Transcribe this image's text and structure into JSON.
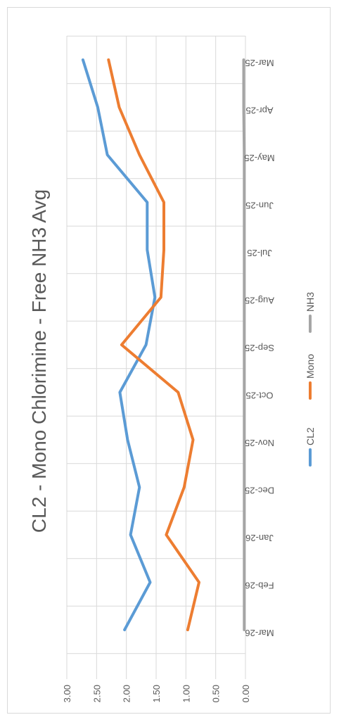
{
  "chart_data": {
    "type": "line",
    "orientation": "rotated-90",
    "title": "CL2 - Mono Chlorimine - Free NH3 Avg",
    "xlabel": "",
    "ylabel": "",
    "ylim": [
      0,
      3
    ],
    "y_ticks": [
      "0.00",
      "0.50",
      "1.00",
      "1.50",
      "2.00",
      "2.50",
      "3.00"
    ],
    "grid": true,
    "legend_position": "bottom",
    "categories": [
      "Mar-25",
      "Apr-25",
      "May-25",
      "Jun-25",
      "Jul-25",
      "Aug-25",
      "Sep-25",
      "Oct-25",
      "Nov-25",
      "Dec-25",
      "Jan-26",
      "Feb-26",
      "Mar-26"
    ],
    "series": [
      {
        "name": "CL2",
        "color": "#5b9bd5",
        "values": [
          2.73,
          2.48,
          2.32,
          1.65,
          1.65,
          1.52,
          1.67,
          2.11,
          1.98,
          1.78,
          1.93,
          1.6,
          2.03
        ]
      },
      {
        "name": "Mono",
        "color": "#ed7d31",
        "values": [
          2.3,
          2.12,
          1.78,
          1.37,
          1.37,
          1.42,
          2.08,
          1.13,
          0.88,
          1.03,
          1.33,
          0.78,
          0.97
        ]
      },
      {
        "name": "NH3",
        "color": "#a5a5a5",
        "values": [
          0.03,
          0.03,
          0.02,
          0.02,
          0.02,
          0.02,
          0.02,
          0.02,
          0.02,
          0.02,
          0.02,
          0.02,
          0.02
        ]
      }
    ]
  }
}
